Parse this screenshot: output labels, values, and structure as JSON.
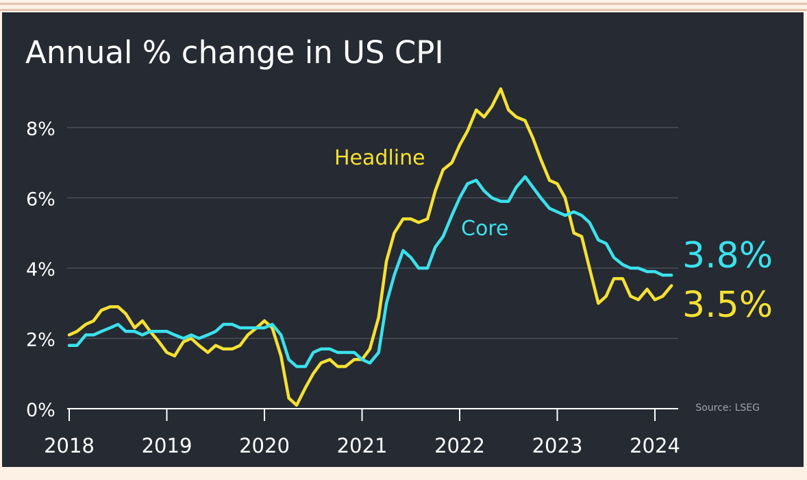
{
  "chart_data": {
    "type": "line",
    "title": "Annual % change in US CPI",
    "source": "Source: LSEG",
    "y_ticks": [
      "0%",
      "2%",
      "4%",
      "6%",
      "8%"
    ],
    "y_tick_values": [
      0,
      2,
      4,
      6,
      8
    ],
    "ylim": [
      0,
      9
    ],
    "x_ticks": [
      "2018",
      "2019",
      "2020",
      "2021",
      "2022",
      "2023",
      "2024"
    ],
    "x_tick_values": [
      2018,
      2019,
      2020,
      2021,
      2022,
      2023,
      2024
    ],
    "xlim": [
      2018,
      2024.25
    ],
    "grid": true,
    "series": [
      {
        "name": "Headline",
        "color": "#f5e132",
        "end_label": "3.5%",
        "points": [
          [
            2018.0,
            2.1
          ],
          [
            2018.08,
            2.2
          ],
          [
            2018.17,
            2.4
          ],
          [
            2018.25,
            2.5
          ],
          [
            2018.33,
            2.8
          ],
          [
            2018.42,
            2.9
          ],
          [
            2018.5,
            2.9
          ],
          [
            2018.58,
            2.7
          ],
          [
            2018.67,
            2.3
          ],
          [
            2018.75,
            2.5
          ],
          [
            2018.83,
            2.2
          ],
          [
            2018.92,
            1.9
          ],
          [
            2019.0,
            1.6
          ],
          [
            2019.08,
            1.5
          ],
          [
            2019.17,
            1.9
          ],
          [
            2019.25,
            2.0
          ],
          [
            2019.33,
            1.8
          ],
          [
            2019.42,
            1.6
          ],
          [
            2019.5,
            1.8
          ],
          [
            2019.58,
            1.7
          ],
          [
            2019.67,
            1.7
          ],
          [
            2019.75,
            1.8
          ],
          [
            2019.83,
            2.1
          ],
          [
            2019.92,
            2.3
          ],
          [
            2020.0,
            2.5
          ],
          [
            2020.08,
            2.3
          ],
          [
            2020.17,
            1.5
          ],
          [
            2020.25,
            0.3
          ],
          [
            2020.33,
            0.1
          ],
          [
            2020.42,
            0.6
          ],
          [
            2020.5,
            1.0
          ],
          [
            2020.58,
            1.3
          ],
          [
            2020.67,
            1.4
          ],
          [
            2020.75,
            1.2
          ],
          [
            2020.83,
            1.2
          ],
          [
            2020.92,
            1.4
          ],
          [
            2021.0,
            1.4
          ],
          [
            2021.08,
            1.7
          ],
          [
            2021.17,
            2.6
          ],
          [
            2021.25,
            4.2
          ],
          [
            2021.33,
            5.0
          ],
          [
            2021.42,
            5.4
          ],
          [
            2021.5,
            5.4
          ],
          [
            2021.58,
            5.3
          ],
          [
            2021.67,
            5.4
          ],
          [
            2021.75,
            6.2
          ],
          [
            2021.83,
            6.8
          ],
          [
            2021.92,
            7.0
          ],
          [
            2022.0,
            7.5
          ],
          [
            2022.08,
            7.9
          ],
          [
            2022.17,
            8.5
          ],
          [
            2022.25,
            8.3
          ],
          [
            2022.33,
            8.6
          ],
          [
            2022.42,
            9.1
          ],
          [
            2022.5,
            8.5
          ],
          [
            2022.58,
            8.3
          ],
          [
            2022.67,
            8.2
          ],
          [
            2022.75,
            7.7
          ],
          [
            2022.83,
            7.1
          ],
          [
            2022.92,
            6.5
          ],
          [
            2023.0,
            6.4
          ],
          [
            2023.08,
            6.0
          ],
          [
            2023.17,
            5.0
          ],
          [
            2023.25,
            4.9
          ],
          [
            2023.33,
            4.0
          ],
          [
            2023.42,
            3.0
          ],
          [
            2023.5,
            3.2
          ],
          [
            2023.58,
            3.7
          ],
          [
            2023.67,
            3.7
          ],
          [
            2023.75,
            3.2
          ],
          [
            2023.83,
            3.1
          ],
          [
            2023.92,
            3.4
          ],
          [
            2024.0,
            3.1
          ],
          [
            2024.08,
            3.2
          ],
          [
            2024.17,
            3.5
          ]
        ]
      },
      {
        "name": "Core",
        "color": "#3be1ec",
        "end_label": "3.8%",
        "points": [
          [
            2018.0,
            1.8
          ],
          [
            2018.08,
            1.8
          ],
          [
            2018.17,
            2.1
          ],
          [
            2018.25,
            2.1
          ],
          [
            2018.33,
            2.2
          ],
          [
            2018.42,
            2.3
          ],
          [
            2018.5,
            2.4
          ],
          [
            2018.58,
            2.2
          ],
          [
            2018.67,
            2.2
          ],
          [
            2018.75,
            2.1
          ],
          [
            2018.83,
            2.2
          ],
          [
            2018.92,
            2.2
          ],
          [
            2019.0,
            2.2
          ],
          [
            2019.08,
            2.1
          ],
          [
            2019.17,
            2.0
          ],
          [
            2019.25,
            2.1
          ],
          [
            2019.33,
            2.0
          ],
          [
            2019.42,
            2.1
          ],
          [
            2019.5,
            2.2
          ],
          [
            2019.58,
            2.4
          ],
          [
            2019.67,
            2.4
          ],
          [
            2019.75,
            2.3
          ],
          [
            2019.83,
            2.3
          ],
          [
            2019.92,
            2.3
          ],
          [
            2020.0,
            2.3
          ],
          [
            2020.08,
            2.4
          ],
          [
            2020.17,
            2.1
          ],
          [
            2020.25,
            1.4
          ],
          [
            2020.33,
            1.2
          ],
          [
            2020.42,
            1.2
          ],
          [
            2020.5,
            1.6
          ],
          [
            2020.58,
            1.7
          ],
          [
            2020.67,
            1.7
          ],
          [
            2020.75,
            1.6
          ],
          [
            2020.83,
            1.6
          ],
          [
            2020.92,
            1.6
          ],
          [
            2021.0,
            1.4
          ],
          [
            2021.08,
            1.3
          ],
          [
            2021.17,
            1.6
          ],
          [
            2021.25,
            3.0
          ],
          [
            2021.33,
            3.8
          ],
          [
            2021.42,
            4.5
          ],
          [
            2021.5,
            4.3
          ],
          [
            2021.58,
            4.0
          ],
          [
            2021.67,
            4.0
          ],
          [
            2021.75,
            4.6
          ],
          [
            2021.83,
            4.9
          ],
          [
            2021.92,
            5.5
          ],
          [
            2022.0,
            6.0
          ],
          [
            2022.08,
            6.4
          ],
          [
            2022.17,
            6.5
          ],
          [
            2022.25,
            6.2
          ],
          [
            2022.33,
            6.0
          ],
          [
            2022.42,
            5.9
          ],
          [
            2022.5,
            5.9
          ],
          [
            2022.58,
            6.3
          ],
          [
            2022.67,
            6.6
          ],
          [
            2022.75,
            6.3
          ],
          [
            2022.83,
            6.0
          ],
          [
            2022.92,
            5.7
          ],
          [
            2023.0,
            5.6
          ],
          [
            2023.08,
            5.5
          ],
          [
            2023.17,
            5.6
          ],
          [
            2023.25,
            5.5
          ],
          [
            2023.33,
            5.3
          ],
          [
            2023.42,
            4.8
          ],
          [
            2023.5,
            4.7
          ],
          [
            2023.58,
            4.3
          ],
          [
            2023.67,
            4.1
          ],
          [
            2023.75,
            4.0
          ],
          [
            2023.83,
            4.0
          ],
          [
            2023.92,
            3.9
          ],
          [
            2024.0,
            3.9
          ],
          [
            2024.08,
            3.8
          ],
          [
            2024.17,
            3.8
          ]
        ]
      }
    ]
  }
}
